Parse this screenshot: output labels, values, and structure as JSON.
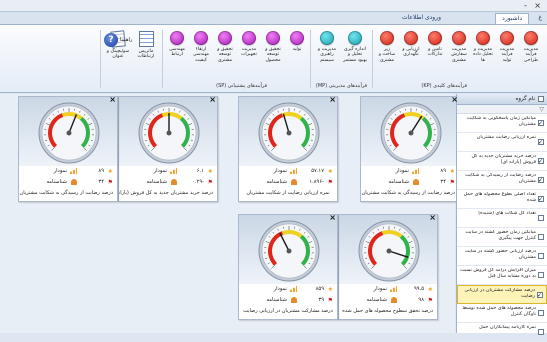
{
  "title_bar": {
    "controls": [
      "-",
      "×"
    ]
  },
  "tabs": [
    {
      "label": "ورودی اطلاعات",
      "active": false
    },
    {
      "label": "داشبورد",
      "active": true
    },
    {
      "label": "غ",
      "active": false
    }
  ],
  "ribbon": {
    "groups": [
      {
        "label": "فرآیندهای کلیدی (KP)"
      },
      {
        "label": "فرآیندهای مدیریتی (MP)"
      },
      {
        "label": "فرآیندهای پشتیبانی (SP)"
      }
    ],
    "kp_buttons": [
      {
        "label": "مدیریت فرآیند طراحی",
        "color": "red"
      },
      {
        "label": "مدیریت فرآیند تولید",
        "color": "red"
      },
      {
        "label": "مدیریت و تحلیل داده ها",
        "color": "red"
      },
      {
        "label": "مدیریت سفارش مشتری",
        "color": "red"
      },
      {
        "label": "تامین و تدارکات",
        "color": "red"
      },
      {
        "label": "ارزیابی و نگهداری",
        "color": "red"
      },
      {
        "label": "زیر ساخت و مشتری",
        "color": "red"
      }
    ],
    "mp_buttons": [
      {
        "label": "اندازه گیری تحلیل و بهبود مستمر",
        "color": "teal"
      },
      {
        "label": "مدیریت و راهبری سیستم",
        "color": "teal"
      }
    ],
    "sp_buttons": [
      {
        "label": "تولید",
        "color": "mag"
      },
      {
        "label": "تحقیق و توسعه محصول",
        "color": "mag"
      },
      {
        "label": "مدیریت تجهیزات",
        "color": "mag"
      },
      {
        "label": "تحقیق و توسعه مشتری",
        "color": "mag"
      },
      {
        "label": "ارتقاء مهندسی کیفیت",
        "color": "mag"
      },
      {
        "label": "مهندسی ارتباط",
        "color": "mag"
      }
    ],
    "extra_buttons": [
      {
        "label": "ماتریس ارتباطات",
        "icon": "matrix-icon"
      },
      {
        "label": "سوئیچینگ و عنوان",
        "icon": "notebook-icon"
      }
    ],
    "help": {
      "label": "راهنما",
      "icon": "help-icon"
    }
  },
  "cards": [
    {
      "id": "c1",
      "title": "درصد رضایت از رسیدگی به شکایت مشتریان",
      "value_star": "۸۹",
      "value_flag": "۳۴",
      "bar_label": "نمودار",
      "id_label": "شناسنامه",
      "report_label": "گزارش",
      "gauge_value": 0.62
    },
    {
      "id": "c2",
      "title": "نمره ارزیابی رضایت از شکایت مشتریان",
      "value_star": "۵۷.۱۷",
      "value_flag": "-۱.۸۹۶",
      "bar_label": "نمودار",
      "id_label": "شناسنامه",
      "report_label": "گزارش",
      "gauge_value": 0.44
    },
    {
      "id": "c3",
      "title": "درصد خرید مشتریان جدید به کل فروش (یارانه ای)",
      "value_star": "۶.۱",
      "value_flag": "-۰.۲۹",
      "bar_label": "نمودار",
      "id_label": "شناسنامه",
      "report_label": "گزارش",
      "gauge_value": 0.5
    },
    {
      "id": "c4",
      "title": "درصد رضایت از رسیدگی به شکایت مشتریان",
      "value_star": "۸۹",
      "value_flag": "۳۴",
      "bar_label": "نمودار",
      "id_label": "شناسنامه",
      "report_label": "گزارش",
      "gauge_value": 0.58
    },
    {
      "id": "c5",
      "title": "درصد تحقق سطوح محصوله های حمل شده",
      "value_star": "۹۹.۵",
      "value_flag": "۹۸",
      "bar_label": "نمودار",
      "id_label": "شناسنامه",
      "report_label": "گزارش",
      "gauge_value": 0.9
    },
    {
      "id": "c6",
      "title": "درصد مشارکت مشتریان در ارزیابی رضایت",
      "value_star": "۸۵۹",
      "value_flag": "۳۹",
      "bar_label": "نمودار",
      "id_label": "شناسنامه",
      "report_label": "گزارش",
      "gauge_value": 0.4
    }
  ],
  "panel": {
    "header": "نام گروه",
    "items": [
      {
        "text": "میانگین زمان پاسخگویی به شکایت مشتریان",
        "checked": true,
        "selected": false
      },
      {
        "text": "نمره ارزیابی رضایت مشتریان",
        "checked": true,
        "selected": false
      },
      {
        "text": "درصد خرید مشتریان جدید به کل فروش (یارانه ای)",
        "checked": true,
        "selected": false
      },
      {
        "text": "درصد رضایت از رسیدگی به شکایت مشتریان",
        "checked": true,
        "selected": false
      },
      {
        "text": "تعداد اصلی بطوع محصوله های حمل شده",
        "checked": true,
        "selected": false
      },
      {
        "text": "تعداد کل شکات های (شنیده)",
        "checked": false,
        "selected": false
      },
      {
        "text": "میانگین زمان حضور گشته در سایت کنترل جهت پیگیری",
        "checked": false,
        "selected": false
      },
      {
        "text": "درصد ارزیابی حضور گشته در سایت مشتریان",
        "checked": false,
        "selected": false
      },
      {
        "text": "میزان افزایش درآمد کل فروش نسبت به دوره مشابه سال قبل",
        "checked": false,
        "selected": false
      },
      {
        "text": "درصد مشارکت مشتریان در ارزیابی رضایت",
        "checked": true,
        "selected": true
      },
      {
        "text": "درصد محصوله های حمل شده توسط ناوگان کنترل",
        "checked": false,
        "selected": false
      },
      {
        "text": "نمره کارنامه پیمانکاران حمل",
        "checked": false,
        "selected": false
      }
    ]
  }
}
